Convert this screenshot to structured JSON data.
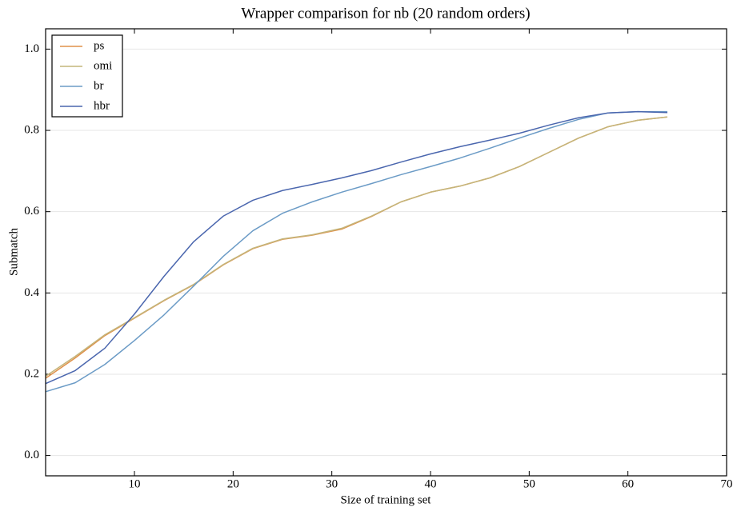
{
  "chart_data": {
    "type": "line",
    "title": "Wrapper comparison for nb (20 random orders)",
    "x_label": "Size of training set",
    "y_label": "Submatch",
    "x": [
      1,
      4,
      7,
      10,
      13,
      16,
      19,
      22,
      25,
      28,
      31,
      34,
      37,
      40,
      43,
      46,
      49,
      52,
      55,
      58,
      61,
      64
    ],
    "series": [
      {
        "name": "ps",
        "color": "#e0914a",
        "values": [
          0.19,
          0.24,
          0.295,
          0.338,
          0.381,
          0.42,
          0.469,
          0.509,
          0.532,
          0.542,
          0.557,
          0.588,
          0.624,
          0.648,
          0.663,
          0.683,
          0.711,
          0.746,
          0.781,
          0.809,
          0.825,
          0.833
        ]
      },
      {
        "name": "omi",
        "color": "#c4b57a",
        "values": [
          0.195,
          0.244,
          0.297,
          0.339,
          0.382,
          0.421,
          0.47,
          0.51,
          0.533,
          0.543,
          0.559,
          0.589,
          0.624,
          0.648,
          0.663,
          0.683,
          0.711,
          0.746,
          0.781,
          0.809,
          0.825,
          0.833
        ]
      },
      {
        "name": "br",
        "color": "#6b9bc6",
        "values": [
          0.157,
          0.179,
          0.224,
          0.283,
          0.346,
          0.417,
          0.49,
          0.553,
          0.596,
          0.624,
          0.648,
          0.669,
          0.691,
          0.711,
          0.732,
          0.756,
          0.781,
          0.805,
          0.827,
          0.843,
          0.846,
          0.846
        ]
      },
      {
        "name": "hbr",
        "color": "#4a66ae",
        "values": [
          0.177,
          0.209,
          0.264,
          0.348,
          0.441,
          0.526,
          0.589,
          0.628,
          0.652,
          0.667,
          0.683,
          0.701,
          0.722,
          0.742,
          0.76,
          0.776,
          0.793,
          0.813,
          0.831,
          0.843,
          0.846,
          0.844
        ]
      }
    ],
    "xlim": [
      1,
      70
    ],
    "xticks": [
      10,
      20,
      30,
      40,
      50,
      60,
      70
    ],
    "ylim": [
      -0.05,
      1.05
    ],
    "yticks": [
      {
        "value": 0,
        "label": "0.0"
      },
      0.2,
      0.4,
      0.6,
      0.8,
      {
        "value": 1,
        "label": "1.0"
      }
    ],
    "grid": true,
    "legend": "upper-left"
  }
}
